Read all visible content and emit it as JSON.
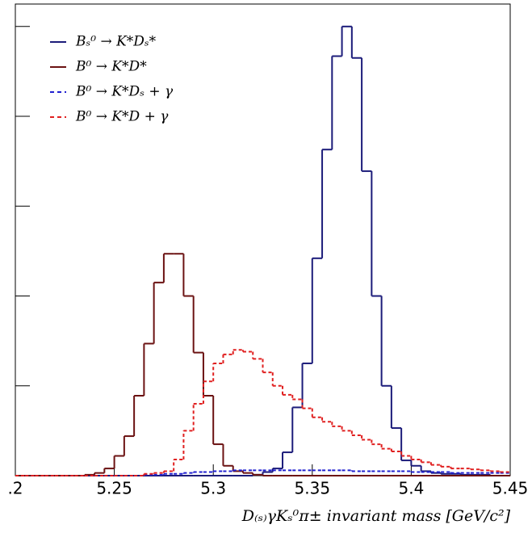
{
  "chart_data": {
    "type": "histogram",
    "xlabel": "D₍ₛ₎γKₛ⁰π± invariant mass [GeV/c²]",
    "bins": [
      5.2,
      5.205,
      5.21,
      5.215,
      5.22,
      5.225,
      5.23,
      5.235,
      5.24,
      5.245,
      5.25,
      5.255,
      5.26,
      5.265,
      5.27,
      5.275,
      5.28,
      5.285,
      5.29,
      5.295,
      5.3,
      5.305,
      5.31,
      5.315,
      5.32,
      5.325,
      5.33,
      5.335,
      5.34,
      5.345,
      5.35,
      5.355,
      5.36,
      5.365,
      5.37,
      5.375,
      5.38,
      5.385,
      5.39,
      5.395,
      5.4,
      5.405,
      5.41,
      5.415,
      5.42,
      5.425,
      5.43,
      5.435,
      5.44,
      5.445,
      5.45
    ],
    "xlim": [
      5.2,
      5.45
    ],
    "xticks": [
      {
        "value": 5.2,
        "label": ".2"
      },
      5.25,
      5.3,
      5.35,
      5.4,
      5.45
    ],
    "ylim": [
      0,
      5.25
    ],
    "yticks": [
      0,
      1,
      2,
      3,
      4,
      5
    ],
    "legend": "upper left",
    "series": [
      {
        "name": "Bₛ⁰ → K*Dₛ*",
        "color": "#1c1c7a",
        "style": "solid",
        "values": [
          0,
          0,
          0,
          0,
          0,
          0,
          0,
          0,
          0,
          0,
          0,
          0,
          0,
          0,
          0,
          0,
          0,
          0,
          0,
          0,
          0,
          0,
          0,
          0,
          0.01,
          0.04,
          0.08,
          0.26,
          0.76,
          1.25,
          2.42,
          3.63,
          4.67,
          5.0,
          4.65,
          3.39,
          2.0,
          1.0,
          0.53,
          0.17,
          0.11,
          0.05,
          0.03,
          0.02,
          0.02,
          0.01,
          0.01,
          0.01,
          0,
          0
        ]
      },
      {
        "name": "B⁰ → K*D*",
        "color": "#6b1212",
        "style": "solid",
        "values": [
          0,
          0,
          0,
          0,
          0,
          0,
          0,
          0.01,
          0.03,
          0.08,
          0.22,
          0.44,
          0.89,
          1.47,
          2.15,
          2.47,
          2.47,
          2.0,
          1.37,
          0.89,
          0.35,
          0.11,
          0.05,
          0.03,
          0.01,
          0,
          0,
          0,
          0,
          0,
          0,
          0,
          0,
          0,
          0,
          0,
          0,
          0,
          0,
          0,
          0,
          0,
          0,
          0,
          0,
          0,
          0,
          0,
          0,
          0
        ]
      },
      {
        "name": "B⁰ → K*Dₛ + γ",
        "color": "#2020d0",
        "style": "dashed",
        "values": [
          0,
          0,
          0,
          0,
          0,
          0,
          0,
          0,
          0,
          0,
          0,
          0,
          0,
          0.01,
          0.01,
          0.02,
          0.02,
          0.03,
          0.04,
          0.04,
          0.05,
          0.05,
          0.06,
          0.06,
          0.06,
          0.06,
          0.06,
          0.06,
          0.06,
          0.06,
          0.06,
          0.06,
          0.06,
          0.06,
          0.05,
          0.05,
          0.05,
          0.05,
          0.05,
          0.05,
          0.04,
          0.04,
          0.04,
          0.04,
          0.03,
          0.03,
          0.03,
          0.03,
          0.03,
          0.03
        ]
      },
      {
        "name": "B⁰ → K*D + γ",
        "color": "#e02020",
        "style": "dashed",
        "values": [
          0,
          0,
          0,
          0,
          0,
          0,
          0,
          0,
          0,
          0,
          0,
          0,
          0,
          0.02,
          0.03,
          0.05,
          0.18,
          0.5,
          0.8,
          1.05,
          1.25,
          1.35,
          1.4,
          1.38,
          1.3,
          1.15,
          1.0,
          0.9,
          0.85,
          0.75,
          0.65,
          0.6,
          0.55,
          0.5,
          0.45,
          0.4,
          0.35,
          0.3,
          0.27,
          0.22,
          0.18,
          0.15,
          0.12,
          0.1,
          0.08,
          0.08,
          0.07,
          0.06,
          0.05,
          0.04
        ]
      }
    ]
  }
}
